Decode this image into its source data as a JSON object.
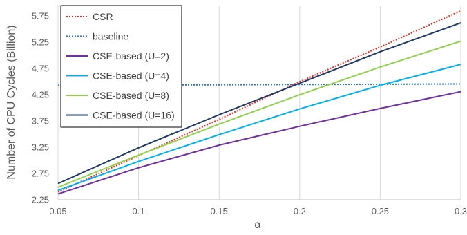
{
  "chart_data": {
    "type": "line",
    "xlabel": "α",
    "ylabel": "Number of CPU Cycles (Billion)",
    "xlim": [
      0.05,
      0.3
    ],
    "ylim": [
      2.25,
      5.95
    ],
    "x_ticks": [
      0.05,
      0.1,
      0.15,
      0.2,
      0.25,
      0.3
    ],
    "x_tick_labels": [
      "0.05",
      "0.1",
      "0.15",
      "0.2",
      "0.25",
      "0.3"
    ],
    "y_ticks": [
      2.25,
      2.75,
      3.25,
      3.75,
      4.25,
      4.75,
      5.25,
      5.75
    ],
    "y_tick_labels": [
      "2.25",
      "2.75",
      "3.25",
      "3.75",
      "4.25",
      "4.75",
      "5.25",
      "5.75"
    ],
    "grid": "vertical",
    "legend_position": "top-left",
    "x": [
      0.05,
      0.1,
      0.15,
      0.2,
      0.25,
      0.3
    ],
    "series": [
      {
        "name": "CSR",
        "color": "#e8281e",
        "dash": "dotted",
        "values": [
          2.4,
          3.09,
          3.78,
          4.5,
          5.16,
          5.85
        ]
      },
      {
        "name": "baseline",
        "color": "#2e75b6",
        "dash": "dotted",
        "values": [
          4.43,
          4.435,
          4.44,
          4.445,
          4.45,
          4.455
        ]
      },
      {
        "name": "CSE-based (U=2)",
        "color": "#7030a0",
        "dash": "solid",
        "values": [
          2.36,
          2.86,
          3.29,
          3.65,
          3.99,
          4.31
        ]
      },
      {
        "name": "CSE-based (U=4)",
        "color": "#00b0f0",
        "dash": "solid",
        "values": [
          2.43,
          2.98,
          3.49,
          3.98,
          4.43,
          4.83
        ]
      },
      {
        "name": "CSE-based (U=8)",
        "color": "#92d050",
        "dash": "solid",
        "values": [
          2.49,
          3.1,
          3.69,
          4.25,
          4.78,
          5.27
        ]
      },
      {
        "name": "CSE-based (U=16)",
        "color": "#1f3864",
        "dash": "solid",
        "values": [
          2.56,
          3.24,
          3.87,
          4.47,
          5.07,
          5.62
        ]
      }
    ]
  }
}
